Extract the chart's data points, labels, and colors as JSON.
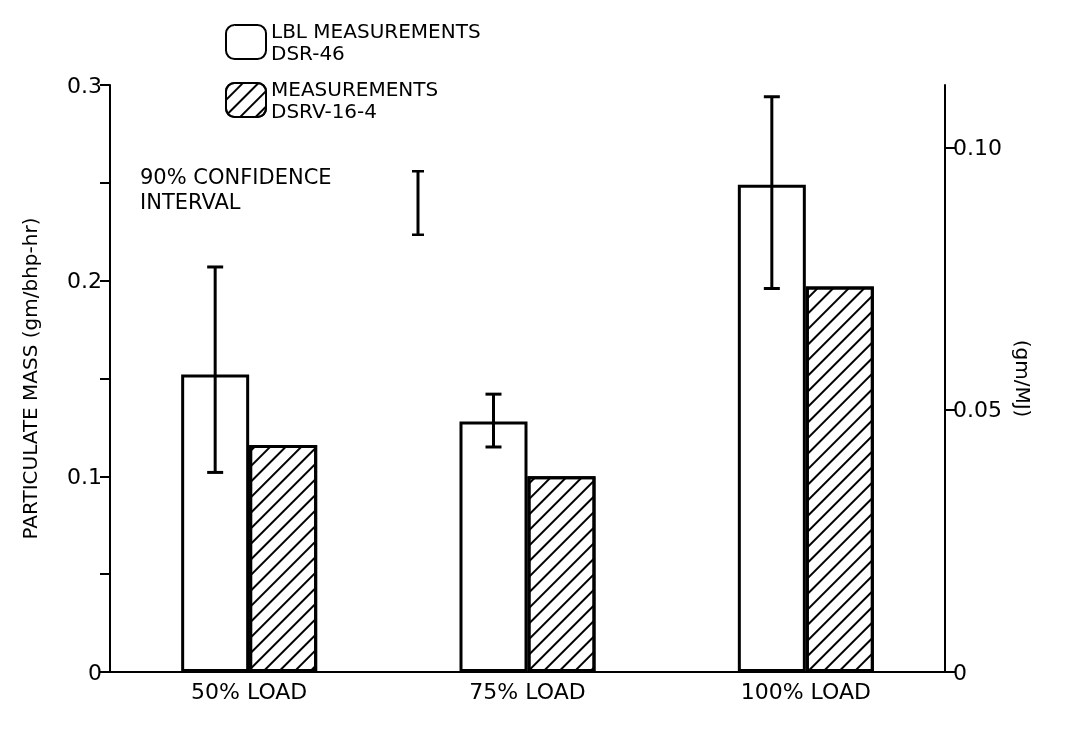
{
  "chart_data": {
    "type": "bar",
    "ylabel": "PARTICULATE MASS (gm/bhp-hr)",
    "y2label": "(gm/MJ)",
    "categories": [
      "50% LOAD",
      "75% LOAD",
      "100% LOAD"
    ],
    "series": [
      {
        "name": "LBL MEASUREMENTS\nDSR-46",
        "color": "#ffffff",
        "values": [
          0.152,
          0.128,
          0.249
        ],
        "errors": [
          [
            0.102,
            0.207
          ],
          [
            0.115,
            0.142
          ],
          [
            0.196,
            0.294
          ]
        ]
      },
      {
        "name": "MEASUREMENTS\nDSRV-16-4",
        "color": "#ffffff",
        "values": [
          0.116,
          0.1,
          0.197
        ]
      }
    ],
    "ylim": [
      0,
      0.3
    ],
    "yticks": [
      0,
      {
        "value": 0.05,
        "label": null
      },
      0.1,
      {
        "value": 0.15,
        "label": null
      },
      0.2,
      {
        "value": 0.25,
        "label": null
      },
      0.3
    ],
    "y2lim": [
      0,
      0.112
    ],
    "y2ticks": [
      0,
      0.05,
      {
        "value": 0.1,
        "label": "0.10"
      }
    ],
    "annotations": [
      "90% CONFIDENCE\nINTERVAL"
    ],
    "grid": false,
    "legend": "top left"
  }
}
